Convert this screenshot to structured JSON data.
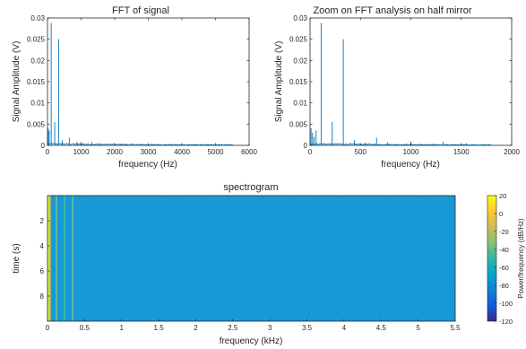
{
  "chart_data": [
    {
      "type": "line",
      "title": "FFT of signal",
      "xlabel": "frequency (Hz)",
      "ylabel": "Signal Amplitude (V)",
      "xlim": [
        0,
        6000
      ],
      "ylim": [
        0,
        0.03
      ],
      "xticks": [
        0,
        1000,
        2000,
        3000,
        4000,
        5000,
        6000
      ],
      "xtick_labels": [
        "0",
        "1000",
        "2000",
        "3000",
        "4000",
        "5000",
        "6000"
      ],
      "yticks": [
        0,
        0.005,
        0.01,
        0.015,
        0.02,
        0.025,
        0.03
      ],
      "ytick_labels": [
        "0",
        "0.005",
        "0.01",
        "0.015",
        "0.02",
        "0.025",
        "0.03"
      ],
      "grid": false,
      "line_color": "#0072BD",
      "x_extent": [
        0,
        5512
      ],
      "peaks": [
        {
          "x": 20,
          "y": 0.004
        },
        {
          "x": 50,
          "y": 0.0035
        },
        {
          "x": 110,
          "y": 0.0288
        },
        {
          "x": 215,
          "y": 0.0055
        },
        {
          "x": 330,
          "y": 0.025
        },
        {
          "x": 440,
          "y": 0.0012
        },
        {
          "x": 650,
          "y": 0.0018
        },
        {
          "x": 880,
          "y": 0.0008
        },
        {
          "x": 1000,
          "y": 0.0008
        },
        {
          "x": 1320,
          "y": 0.0008
        },
        {
          "x": 1550,
          "y": 0.0005
        },
        {
          "x": 2200,
          "y": 0.0004
        },
        {
          "x": 3300,
          "y": 0.0003
        }
      ],
      "noise_floor": 0.0003
    },
    {
      "type": "line",
      "title": "Zoom on FFT analysis on half mirror",
      "xlabel": "frequency (Hz)",
      "ylabel": "Signal Amplitude (V)",
      "xlim": [
        0,
        2000
      ],
      "ylim": [
        0,
        0.03
      ],
      "xticks": [
        0,
        500,
        1000,
        1500,
        2000
      ],
      "xtick_labels": [
        "0",
        "500",
        "1000",
        "1500",
        "2000"
      ],
      "yticks": [
        0,
        0.005,
        0.01,
        0.015,
        0.02,
        0.025,
        0.03
      ],
      "ytick_labels": [
        "0",
        "0.005",
        "0.01",
        "0.015",
        "0.02",
        "0.025",
        "0.03"
      ],
      "grid": false,
      "line_color": "#0072BD",
      "x_extent": [
        0,
        1800
      ],
      "peaks": [
        {
          "x": 10,
          "y": 0.004
        },
        {
          "x": 25,
          "y": 0.003
        },
        {
          "x": 40,
          "y": 0.002
        },
        {
          "x": 60,
          "y": 0.0035
        },
        {
          "x": 110,
          "y": 0.0288
        },
        {
          "x": 220,
          "y": 0.0055
        },
        {
          "x": 330,
          "y": 0.025
        },
        {
          "x": 440,
          "y": 0.0012
        },
        {
          "x": 550,
          "y": 0.0006
        },
        {
          "x": 660,
          "y": 0.0018
        },
        {
          "x": 770,
          "y": 0.0007
        },
        {
          "x": 1000,
          "y": 0.0009
        },
        {
          "x": 1320,
          "y": 0.0008
        },
        {
          "x": 1550,
          "y": 0.0005
        }
      ],
      "noise_floor": 0.0003
    },
    {
      "type": "heatmap",
      "title": "spectrogram",
      "xlabel": "frequency (kHz)",
      "ylabel": "time (s)",
      "xlim": [
        0,
        5.5
      ],
      "ylim": [
        0,
        10
      ],
      "xticks": [
        0,
        0.5,
        1,
        1.5,
        2,
        2.5,
        3,
        3.5,
        4,
        4.5,
        5,
        5.5
      ],
      "xtick_labels": [
        "0",
        "0.5",
        "1",
        "1.5",
        "2",
        "2.5",
        "3",
        "3.5",
        "4",
        "4.5",
        "5",
        "5.5"
      ],
      "yticks": [
        2,
        4,
        6,
        8
      ],
      "ytick_labels": [
        "2",
        "4",
        "6",
        "8"
      ],
      "y_direction": "reverse",
      "background_level": -78,
      "bands": [
        {
          "x": 0.0,
          "width": 0.025,
          "level": 20
        },
        {
          "x": 0.025,
          "width": 0.02,
          "level": -10
        },
        {
          "x": 0.11,
          "width": 0.02,
          "level": -35
        },
        {
          "x": 0.22,
          "width": 0.02,
          "level": -45
        },
        {
          "x": 0.33,
          "width": 0.02,
          "level": -38
        }
      ],
      "colorbar": {
        "label": "Power/frequency (dB/Hz)",
        "range": [
          -120,
          20
        ],
        "ticks": [
          20,
          0,
          -20,
          -40,
          -60,
          -80,
          -100,
          -120
        ],
        "tick_labels": [
          "20",
          "0",
          "-20",
          "-40",
          "-60",
          "-80",
          "-100",
          "-120"
        ],
        "colormap": "parula",
        "placement": "right"
      }
    }
  ]
}
